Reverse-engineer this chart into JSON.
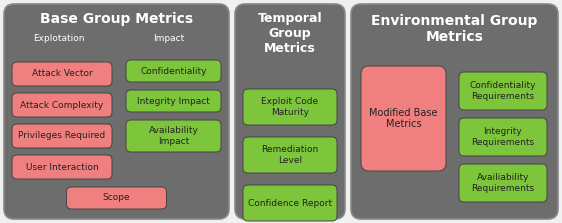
{
  "fig_width": 5.62,
  "fig_height": 2.23,
  "bg_color": "#f0f0f0",
  "panel_color": "#6d6d6d",
  "pink_color": "#f08080",
  "green_color": "#7dc63c",
  "text_light": "#ffffff",
  "text_dark": "#222222",
  "base_title": "Base Group Metrics",
  "base_exploit_label": "Explotation",
  "base_impact_label": "Impact",
  "base_exploit_items": [
    "Attack Vector",
    "Attack Complexity",
    "Privileges Required",
    "User Interaction"
  ],
  "base_impact_items": [
    "Confidentiality",
    "Integrity Impact",
    "Availability\nImpact"
  ],
  "base_scope": "Scope",
  "temporal_title": "Temporal\nGroup\nMetrics",
  "temporal_items": [
    "Exploit Code\nMaturity",
    "Remediation\nLevel",
    "Confidence Report"
  ],
  "env_title": "Environmental Group\nMetrics",
  "env_left_item": "Modified Base\nMetrics",
  "env_right_items": [
    "Confidentiality\nRequirements",
    "Integrity\nRequirements",
    "Availiability\nRequirements"
  ]
}
